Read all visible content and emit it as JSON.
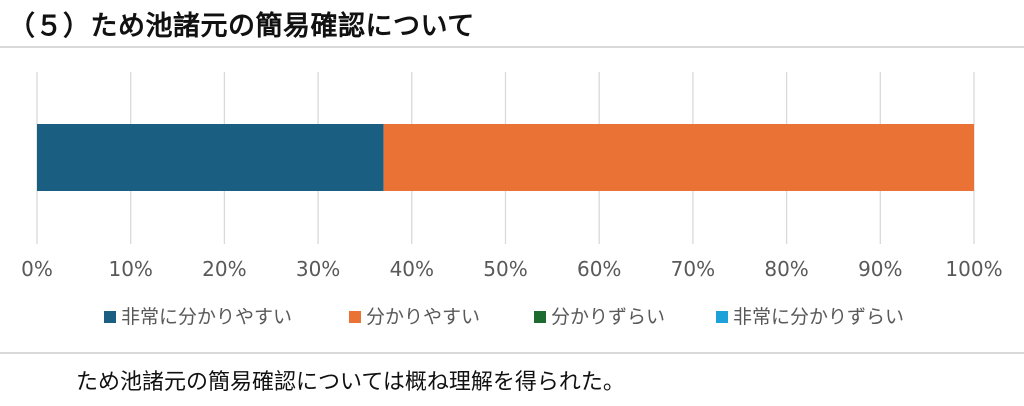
{
  "heading": "（５）ため池諸元の簡易確認について",
  "note": "ため池諸元の簡易確認については概ね理解を得られた。",
  "chart_data": {
    "type": "bar",
    "orientation": "horizontal",
    "stacked": true,
    "percent": true,
    "title": "",
    "xlabel": "",
    "ylabel": "",
    "xlim": [
      0,
      100
    ],
    "ticks": [
      "0%",
      "10%",
      "20%",
      "30%",
      "40%",
      "50%",
      "60%",
      "70%",
      "80%",
      "90%",
      "100%"
    ],
    "grid": true,
    "legend_position": "bottom",
    "series": [
      {
        "name": "非常に分かりやすい",
        "values": [
          37
        ],
        "color": "#1a5e82"
      },
      {
        "name": "分かりやすい",
        "values": [
          63
        ],
        "color": "#ea7234"
      },
      {
        "name": "分かりずらい",
        "values": [
          0
        ],
        "color": "#1e6b2f"
      },
      {
        "name": "非常に分かりずらい",
        "values": [
          0
        ],
        "color": "#1ea1d8"
      }
    ]
  }
}
